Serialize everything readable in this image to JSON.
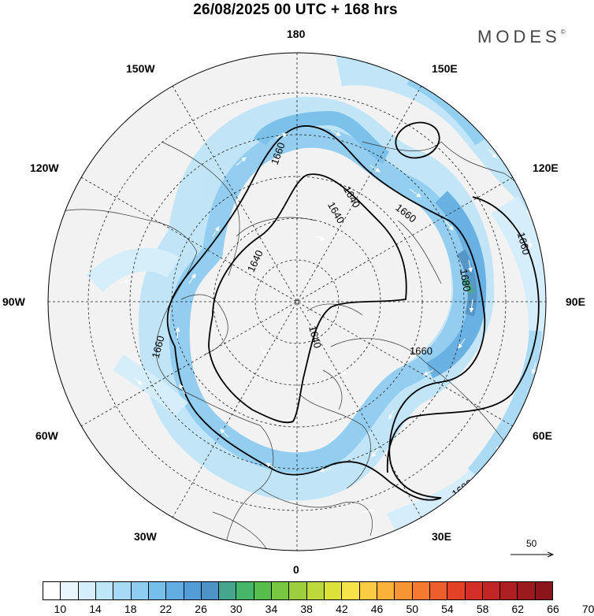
{
  "title": "26/08/2025  00 UTC  + 168 hrs",
  "brand": {
    "name": "MODES",
    "mark": "©"
  },
  "longitude_labels": {
    "top": "180",
    "bottom": "0",
    "left": "90W",
    "right": "90E",
    "nw1": "150W",
    "nw2": "120W",
    "ne1": "150E",
    "ne2": "120E",
    "sw1": "60W",
    "sw2": "30W",
    "se1": "60E",
    "se2": "30E"
  },
  "contour_labels": [
    "1660",
    "1640",
    "1640",
    "1660",
    "1680",
    "1640",
    "1660",
    "1660",
    "1660",
    "1680",
    "1640"
  ],
  "vector_reference": {
    "value": "50"
  },
  "color_scale": {
    "colors": [
      "#ffffff",
      "#e9f6fd",
      "#d4eefb",
      "#bfe5f8",
      "#a7daf4",
      "#8ecdf0",
      "#76bfea",
      "#62aee2",
      "#529dd8",
      "#4e93c5",
      "#45a58f",
      "#45b66a",
      "#56be4a",
      "#79c642",
      "#9ccf3d",
      "#bdd83a",
      "#dde23b",
      "#f6e34a",
      "#fbcc43",
      "#fbb23b",
      "#f79535",
      "#f37a30",
      "#ec5e2b",
      "#e34227",
      "#d42f26",
      "#c22525",
      "#ae1f22",
      "#9a1a1e",
      "#8a161b"
    ],
    "tick_labels": [
      "10",
      "14",
      "18",
      "22",
      "26",
      "30",
      "34",
      "38",
      "42",
      "46",
      "50",
      "54",
      "58",
      "62",
      "66",
      "70"
    ]
  }
}
